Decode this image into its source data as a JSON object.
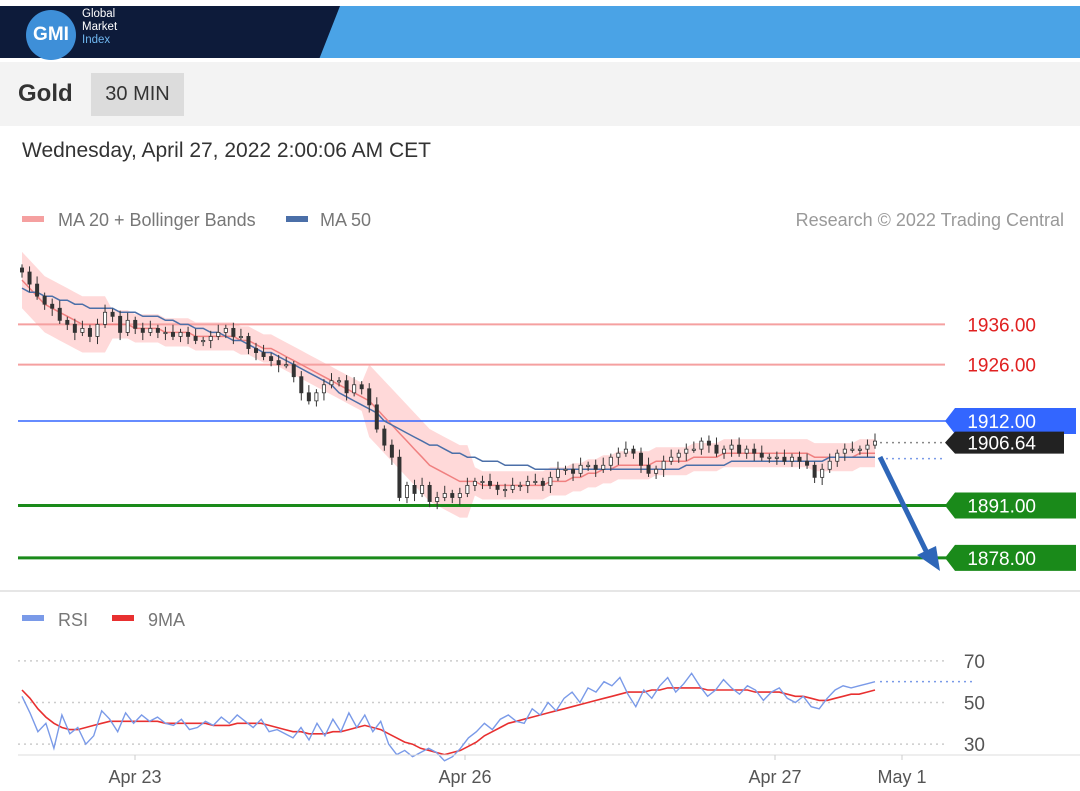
{
  "header": {
    "logo_mark": "GMI",
    "logo_line1": "Global",
    "logo_line2": "Market",
    "logo_line3": "Index"
  },
  "instrument": {
    "name": "Gold",
    "timeframe": "30 MIN"
  },
  "datetime": "Wednesday, April 27, 2022 2:00:06 AM CET",
  "legend": {
    "ma20": "MA 20 + Bollinger Bands",
    "ma50": "MA 50",
    "credit": "Research © 2022 Trading Central",
    "rsi": "RSI",
    "ma9": "9MA"
  },
  "colors": {
    "ma20": "#f08080",
    "ma50": "#4b6fa8",
    "bollinger_fill": "#ffd2d2",
    "resistance": "#f5a0a0",
    "resistance_text": "#e02020",
    "pivot": "#3366ff",
    "support": "#1a8a1a",
    "rsi": "#7a9ae8",
    "ma9": "#e83030",
    "forecast_arrow": "#2e66b8"
  },
  "chart_data": [
    {
      "type": "candlestick",
      "title": "Gold 30 MIN",
      "x_labels": [
        "Apr 23",
        "Apr 26",
        "Apr 27",
        "May 1"
      ],
      "ylim": [
        1873,
        1950
      ],
      "last_price": 1906.64,
      "levels": [
        {
          "label": "1936.00",
          "value": 1936.0,
          "kind": "resistance"
        },
        {
          "label": "1926.00",
          "value": 1926.0,
          "kind": "resistance"
        },
        {
          "label": "1912.00",
          "value": 1912.0,
          "kind": "pivot"
        },
        {
          "label": "1891.00",
          "value": 1891.0,
          "kind": "support"
        },
        {
          "label": "1878.00",
          "value": 1878.0,
          "kind": "support"
        }
      ],
      "last_price_label": "1906.64",
      "close_series": [
        1949,
        1946,
        1943,
        1941,
        1940,
        1937,
        1936,
        1934,
        1935,
        1933,
        1936,
        1939,
        1938,
        1934,
        1937,
        1935,
        1934,
        1935,
        1934,
        1934,
        1933,
        1934,
        1933,
        1932,
        1932,
        1933,
        1934,
        1935,
        1933,
        1933,
        1930,
        1929,
        1928,
        1927,
        1926,
        1926,
        1923,
        1919,
        1917,
        1919,
        1921,
        1922,
        1922,
        1919,
        1921,
        1920,
        1916,
        1910,
        1906,
        1903,
        1893,
        1896,
        1894,
        1896,
        1892,
        1893,
        1894,
        1893,
        1894,
        1896,
        1897,
        1897,
        1896,
        1895,
        1895,
        1896,
        1896,
        1897,
        1897,
        1896,
        1898,
        1900,
        1900,
        1899,
        1901,
        1901,
        1900,
        1901,
        1903,
        1904,
        1905,
        1904,
        1901,
        1899,
        1900,
        1902,
        1903,
        1904,
        1905,
        1905,
        1907,
        1906,
        1904,
        1905,
        1906,
        1904,
        1905,
        1904,
        1903,
        1903,
        1903,
        1902,
        1903,
        1902,
        1901,
        1898,
        1900,
        1902,
        1904,
        1905,
        1905,
        1905,
        1906,
        1907
      ],
      "ma20_series": [
        1947,
        1945,
        1943,
        1941,
        1940,
        1939,
        1938,
        1937,
        1936,
        1936,
        1936,
        1936,
        1936,
        1936,
        1936,
        1935,
        1935,
        1935,
        1935,
        1934,
        1934,
        1934,
        1934,
        1933,
        1933,
        1933,
        1933,
        1933,
        1933,
        1932,
        1932,
        1931,
        1930,
        1930,
        1929,
        1928,
        1927,
        1926,
        1925,
        1924,
        1923,
        1922,
        1921,
        1920,
        1919,
        1918,
        1917,
        1915,
        1913,
        1911,
        1909,
        1907,
        1905,
        1903,
        1901,
        1900,
        1899,
        1898,
        1897,
        1897,
        1897,
        1896,
        1896,
        1896,
        1896,
        1896,
        1896,
        1896,
        1896,
        1896,
        1897,
        1897,
        1897,
        1898,
        1898,
        1899,
        1899,
        1900,
        1900,
        1901,
        1901,
        1901,
        1901,
        1901,
        1902,
        1902,
        1902,
        1902,
        1902,
        1903,
        1903,
        1903,
        1903,
        1904,
        1904,
        1904,
        1904,
        1904,
        1904,
        1904,
        1904,
        1904,
        1904,
        1904,
        1904,
        1903,
        1903,
        1903,
        1903,
        1903,
        1903,
        1904,
        1904,
        1904
      ],
      "ma50_series": [
        1945,
        1944,
        1944,
        1943,
        1943,
        1942,
        1942,
        1941,
        1941,
        1940,
        1940,
        1940,
        1940,
        1939,
        1939,
        1939,
        1938,
        1938,
        1938,
        1937,
        1937,
        1936,
        1936,
        1935,
        1935,
        1934,
        1934,
        1933,
        1932,
        1932,
        1931,
        1930,
        1929,
        1929,
        1928,
        1927,
        1926,
        1925,
        1924,
        1923,
        1922,
        1921,
        1919,
        1918,
        1917,
        1916,
        1915,
        1914,
        1912,
        1911,
        1910,
        1909,
        1908,
        1907,
        1906,
        1906,
        1905,
        1904,
        1904,
        1903,
        1903,
        1902,
        1902,
        1902,
        1901,
        1901,
        1901,
        1901,
        1900,
        1900,
        1900,
        1900,
        1900,
        1900,
        1900,
        1900,
        1900,
        1900,
        1900,
        1900,
        1900,
        1900,
        1900,
        1900,
        1900,
        1900,
        1900,
        1900,
        1901,
        1901,
        1901,
        1901,
        1901,
        1901,
        1902,
        1902,
        1902,
        1902,
        1902,
        1902,
        1902,
        1902,
        1902,
        1902,
        1902,
        1902,
        1902,
        1903,
        1903,
        1903,
        1903,
        1903,
        1903,
        1903
      ]
    },
    {
      "type": "line",
      "title": "RSI",
      "series": [
        {
          "name": "RSI"
        },
        {
          "name": "9MA"
        }
      ],
      "ylim": [
        20,
        80
      ],
      "y_ticks": [
        70,
        50,
        30
      ],
      "rsi_series": [
        53,
        45,
        36,
        40,
        28,
        44,
        35,
        38,
        30,
        34,
        46,
        42,
        36,
        45,
        40,
        44,
        41,
        43,
        40,
        39,
        42,
        37,
        38,
        41,
        39,
        43,
        40,
        44,
        41,
        38,
        42,
        36,
        37,
        35,
        33,
        38,
        32,
        40,
        34,
        42,
        36,
        45,
        38,
        44,
        36,
        41,
        30,
        25,
        27,
        24,
        26,
        28,
        26,
        22,
        24,
        28,
        33,
        36,
        40,
        37,
        42,
        44,
        41,
        40,
        47,
        44,
        50,
        46,
        52,
        55,
        50,
        57,
        55,
        60,
        58,
        62,
        54,
        48,
        56,
        52,
        58,
        62,
        55,
        59,
        64,
        58,
        53,
        56,
        61,
        57,
        54,
        58,
        56,
        51,
        55,
        57,
        52,
        50,
        53,
        48,
        47,
        52,
        56,
        58,
        57,
        58,
        59,
        60
      ],
      "ma9_series": [
        56,
        52,
        47,
        43,
        40,
        38,
        37,
        37,
        38,
        39,
        40,
        41,
        41,
        41,
        41,
        41,
        41,
        41,
        40,
        40,
        40,
        40,
        40,
        40,
        39,
        39,
        39,
        40,
        40,
        40,
        40,
        39,
        38,
        37,
        36,
        36,
        35,
        35,
        35,
        36,
        36,
        37,
        38,
        39,
        38,
        37,
        35,
        33,
        31,
        30,
        28,
        27,
        26,
        25,
        26,
        27,
        29,
        31,
        34,
        36,
        38,
        40,
        41,
        42,
        43,
        44,
        45,
        46,
        47,
        48,
        49,
        50,
        51,
        52,
        53,
        54,
        55,
        55,
        55,
        56,
        56,
        57,
        57,
        57,
        57,
        57,
        56,
        56,
        56,
        56,
        56,
        56,
        55,
        55,
        55,
        55,
        54,
        53,
        53,
        52,
        51,
        51,
        52,
        53,
        54,
        54,
        55,
        56
      ]
    }
  ]
}
